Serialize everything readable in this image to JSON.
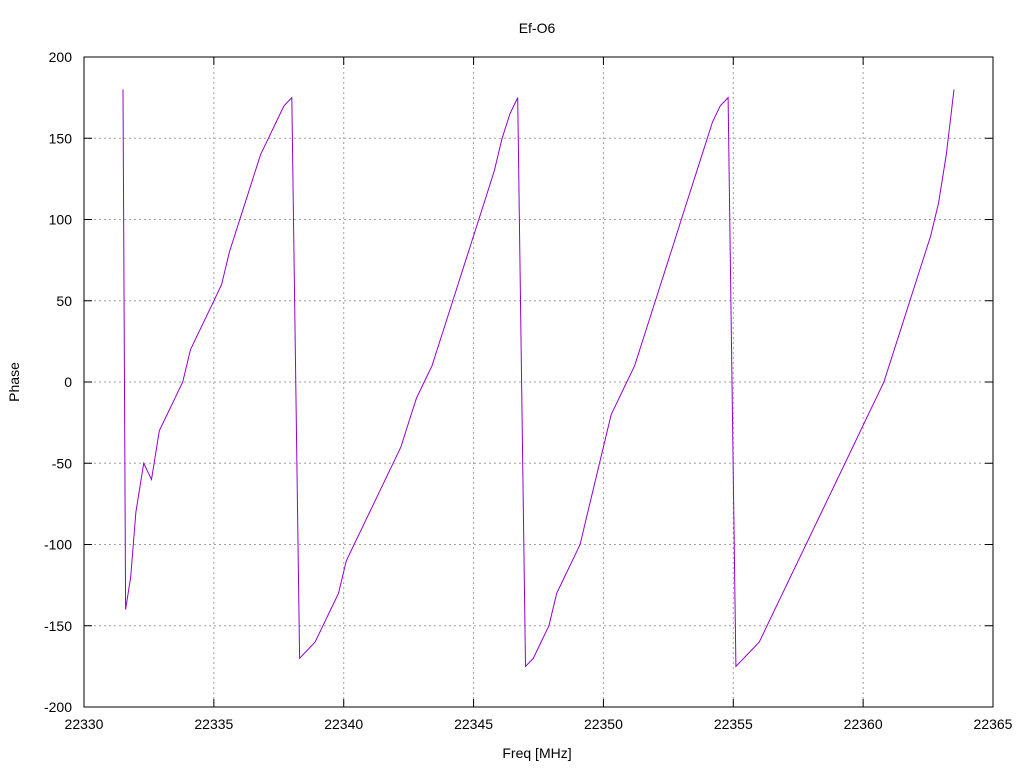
{
  "chart_data": {
    "type": "line",
    "title": "Ef-O6",
    "xlabel": "Freq [MHz]",
    "ylabel": "Phase",
    "xlim": [
      22330,
      22365
    ],
    "ylim": [
      -200,
      200
    ],
    "xticks": [
      22330,
      22335,
      22340,
      22345,
      22350,
      22355,
      22360,
      22365
    ],
    "yticks": [
      -200,
      -150,
      -100,
      -50,
      0,
      50,
      100,
      150,
      200
    ],
    "grid": true,
    "legend": "none",
    "line_color": "#9400d3",
    "series": [
      {
        "x": [
          22331.5,
          22331.6,
          22331.8,
          22332.0,
          22332.3,
          22332.6,
          22332.9,
          22333.2,
          22333.5,
          22333.8,
          22334.1,
          22334.4,
          22334.7,
          22335.0,
          22335.3,
          22335.6,
          22335.9,
          22336.2,
          22336.5,
          22336.8,
          22337.1,
          22337.4,
          22337.7,
          22338.0,
          22338.3,
          22338.6,
          22338.9,
          22339.2,
          22339.5,
          22339.8,
          22340.1,
          22340.4,
          22340.7,
          22341.0,
          22341.3,
          22341.6,
          22341.9,
          22342.2,
          22342.5,
          22342.8,
          22343.1,
          22343.4,
          22343.7,
          22344.0,
          22344.3,
          22344.6,
          22344.9,
          22345.2,
          22345.5,
          22345.8,
          22346.1,
          22346.4,
          22346.7,
          22347.0,
          22347.3,
          22347.6,
          22347.9,
          22348.2,
          22348.5,
          22348.8,
          22349.1,
          22349.4,
          22349.7,
          22350.0,
          22350.3,
          22350.6,
          22350.9,
          22351.2,
          22351.5,
          22351.8,
          22352.1,
          22352.4,
          22352.7,
          22353.0,
          22353.3,
          22353.6,
          22353.9,
          22354.2,
          22354.5,
          22354.8,
          22355.1,
          22355.4,
          22355.7,
          22356.0,
          22356.3,
          22356.6,
          22356.9,
          22357.2,
          22357.5,
          22357.8,
          22358.1,
          22358.4,
          22358.7,
          22359.0,
          22359.3,
          22359.6,
          22359.9,
          22360.2,
          22360.5,
          22360.8,
          22361.1,
          22361.4,
          22361.7,
          22362.0,
          22362.3,
          22362.6,
          22362.9,
          22363.2,
          22363.5
        ],
        "y": [
          180,
          -140,
          -120,
          -80,
          -50,
          -60,
          -30,
          -20,
          -10,
          0,
          20,
          30,
          40,
          50,
          60,
          80,
          95,
          110,
          125,
          140,
          150,
          160,
          170,
          175,
          -170,
          -165,
          -160,
          -150,
          -140,
          -130,
          -110,
          -100,
          -90,
          -80,
          -70,
          -60,
          -50,
          -40,
          -25,
          -10,
          0,
          10,
          25,
          40,
          55,
          70,
          85,
          100,
          115,
          130,
          150,
          165,
          175,
          -175,
          -170,
          -160,
          -150,
          -130,
          -120,
          -110,
          -100,
          -80,
          -60,
          -40,
          -20,
          -10,
          0,
          10,
          25,
          40,
          55,
          70,
          85,
          100,
          115,
          130,
          145,
          160,
          170,
          175,
          -175,
          -170,
          -165,
          -160,
          -150,
          -140,
          -130,
          -120,
          -110,
          -100,
          -90,
          -80,
          -70,
          -60,
          -50,
          -40,
          -30,
          -20,
          -10,
          0,
          15,
          30,
          45,
          60,
          75,
          90,
          110,
          140,
          180
        ]
      }
    ]
  }
}
